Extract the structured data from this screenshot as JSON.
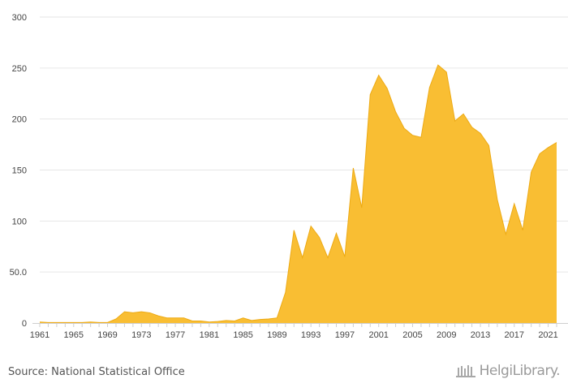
{
  "chart_data": {
    "type": "area",
    "title": "",
    "xlabel": "",
    "ylabel": "",
    "ylim": [
      0,
      300
    ],
    "y_ticks": [
      "0",
      "50.0",
      "100",
      "150",
      "200",
      "250",
      "300"
    ],
    "x_tick_labels": [
      "1961",
      "1965",
      "1969",
      "1973",
      "1977",
      "1981",
      "1985",
      "1989",
      "1993",
      "1997",
      "2001",
      "2005",
      "2009",
      "2013",
      "2017",
      "2021"
    ],
    "grid": true,
    "color": "#F9BE33",
    "line_color": "#EDAA14",
    "x": [
      1961,
      1962,
      1963,
      1964,
      1965,
      1966,
      1967,
      1968,
      1969,
      1970,
      1971,
      1972,
      1973,
      1974,
      1975,
      1976,
      1977,
      1978,
      1979,
      1980,
      1981,
      1982,
      1983,
      1984,
      1985,
      1986,
      1987,
      1988,
      1989,
      1990,
      1991,
      1992,
      1993,
      1994,
      1995,
      1996,
      1997,
      1998,
      1999,
      2000,
      2001,
      2002,
      2003,
      2004,
      2005,
      2006,
      2007,
      2008,
      2009,
      2010,
      2011,
      2012,
      2013,
      2014,
      2015,
      2016,
      2017,
      2018,
      2019,
      2020,
      2021,
      2022
    ],
    "values": [
      1,
      0.5,
      0.5,
      0.5,
      0.5,
      0.5,
      1,
      0.5,
      0.5,
      4,
      11,
      10,
      11,
      10,
      7,
      5,
      5,
      5,
      2,
      2,
      1,
      1.5,
      2.5,
      2,
      5,
      2.5,
      3.5,
      4,
      5,
      30,
      91,
      64,
      95,
      84,
      64,
      88,
      65,
      152,
      113,
      224,
      243,
      230,
      207,
      191,
      184,
      182,
      231,
      253,
      246,
      198,
      205,
      192,
      186,
      174,
      121,
      87,
      117,
      91,
      148,
      166,
      172,
      177
    ]
  },
  "footer": {
    "source": "Source: National Statistical Office",
    "brand": "HelgiLibrary."
  }
}
